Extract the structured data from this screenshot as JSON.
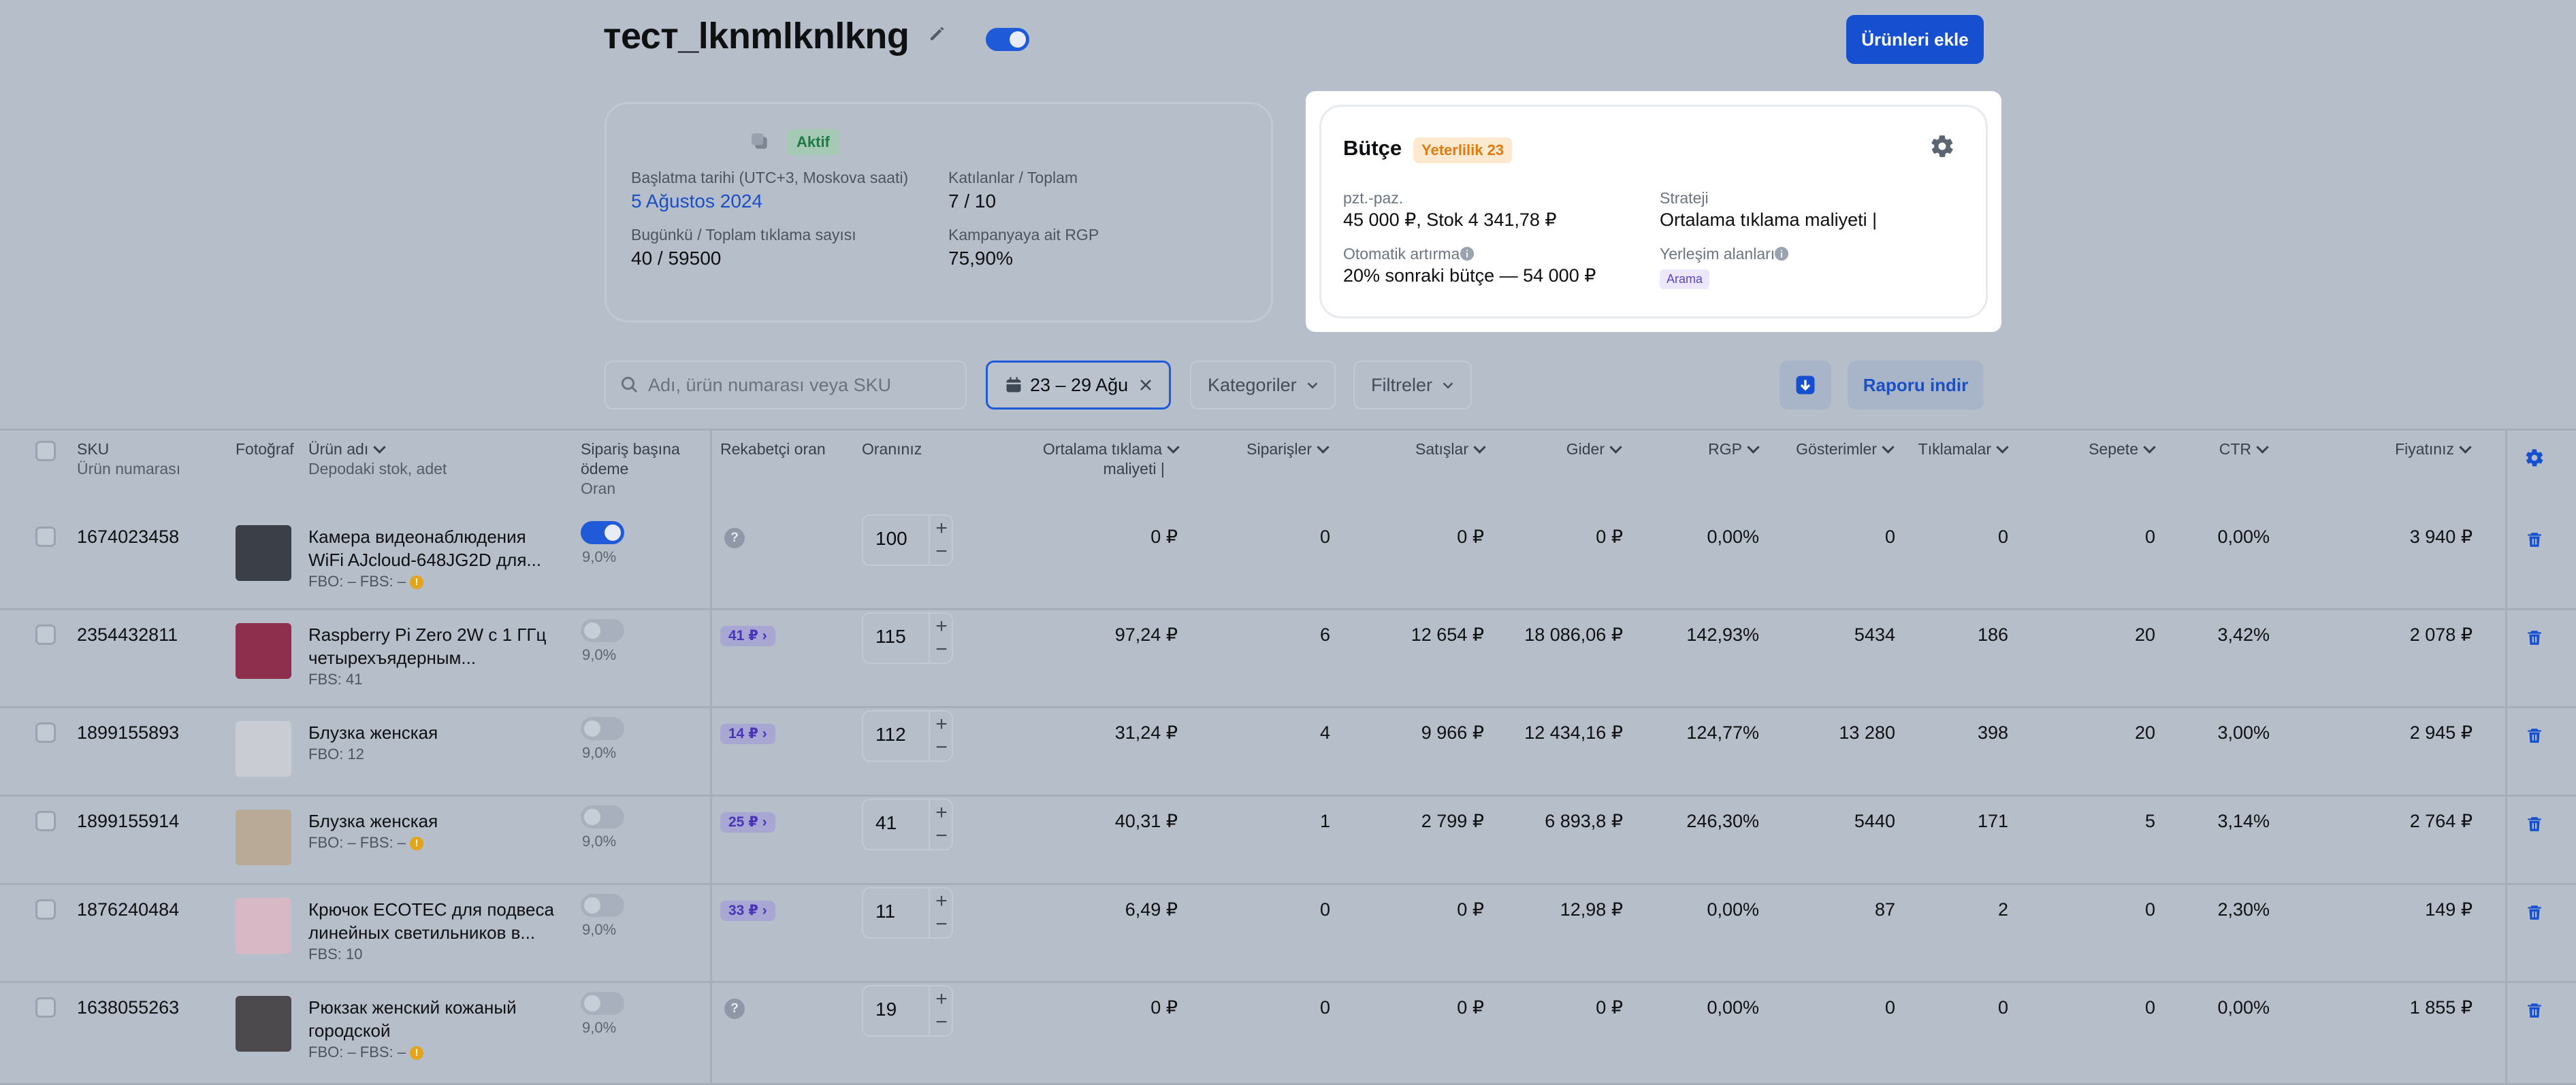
{
  "header": {
    "title": "тест_lknmlknlkng",
    "add_products_label": "Ürünleri ekle"
  },
  "campaign": {
    "status": "Aktif",
    "start_label": "Başlatma tarihi (UTC+3, Moskova saati)",
    "start_value": "5 Ağustos 2024",
    "participants_label": "Katılanlar / Toplam",
    "participants_value": "7 / 10",
    "clicks_label": "Bugünkü / Toplam tıklama sayısı",
    "clicks_value": "40 / 59500",
    "rgp_label": "Kampanyaya ait RGP",
    "rgp_value": "75,90%"
  },
  "budget": {
    "title": "Bütçe",
    "badge": "Yeterlilik 23",
    "period_label": "pzt.-paz.",
    "period_value": "45 000 ₽, Stok 4 341,78 ₽",
    "strategy_label": "Strateji",
    "strategy_value": "Ortalama tıklama maliyeti |",
    "auto_label": "Otomatik artırma",
    "auto_value": "20% sonraki bütçe — 54 000 ₽",
    "placement_label": "Yerleşim alanları",
    "placement_value": "Arama",
    "colors": {
      "badge_bg": "#fde9cf",
      "badge_fg": "#e07a12"
    }
  },
  "toolbar": {
    "search_placeholder": "Adı, ürün numarası veya SKU",
    "date_range": "23 – 29 Ağu",
    "categories": "Kategoriler",
    "filters": "Filtreler",
    "report": "Raporu indir"
  },
  "table": {
    "headers": {
      "sku": "SKU",
      "sku_sub": "Ürün numarası",
      "photo": "Fotoğraf",
      "name": "Ürün adı",
      "name_sub": "Depodaki stok, adet",
      "order_pay_1": "Sipariş başına",
      "order_pay_2": "ödeme",
      "order_pay_3": "Oran",
      "competitor": "Rekabetçi oran",
      "yourrate": "Oranınız",
      "cpc_1": "Ortalama tıklama",
      "cpc_2": "maliyeti |",
      "orders": "Siparişler",
      "sales": "Satışlar",
      "expense": "Gider",
      "rgp": "RGP",
      "impressions": "Gösterimler",
      "clicks": "Tıklamalar",
      "cart": "Sepete",
      "ctr": "CTR",
      "price": "Fiyatınız"
    },
    "rows": [
      {
        "sku": "1674023458",
        "name1": "Камера видеонаблюдения",
        "name2": "WiFi AJcloud-648JG2D для...",
        "stock": "FBO: –   FBS: –",
        "warn": "!",
        "pay_on": true,
        "pay_pct": "9,0%",
        "comp": "?",
        "rate": "100",
        "cpc": "0 ₽",
        "orders": "0",
        "sales": "0 ₽",
        "expense": "0 ₽",
        "rgp": "0,00%",
        "impr": "0",
        "clicks": "0",
        "cart": "0",
        "ctr": "0,00%",
        "price": "3 940 ₽",
        "thumb": "#3b3f47"
      },
      {
        "sku": "2354432811",
        "name1": "Raspberry Pi Zero 2W с 1 ГГц",
        "name2": "четырехъядерным...",
        "stock": "FBS: 41",
        "warn": "",
        "pay_on": false,
        "pay_pct": "9,0%",
        "comp": "41 ₽",
        "rate": "115",
        "cpc": "97,24 ₽",
        "orders": "6",
        "sales": "12 654 ₽",
        "expense": "18 086,06 ₽",
        "rgp": "142,93%",
        "impr": "5434",
        "clicks": "186",
        "cart": "20",
        "ctr": "3,42%",
        "price": "2 078 ₽",
        "thumb": "#8e2f4e"
      },
      {
        "sku": "1899155893",
        "name1": "Блузка женская",
        "name2": "",
        "stock": "FBO: 12",
        "warn": "",
        "pay_on": false,
        "pay_pct": "9,0%",
        "comp": "14 ₽",
        "rate": "112",
        "cpc": "31,24 ₽",
        "orders": "4",
        "sales": "9 966 ₽",
        "expense": "12 434,16 ₽",
        "rgp": "124,77%",
        "impr": "13 280",
        "clicks": "398",
        "cart": "20",
        "ctr": "3,00%",
        "price": "2 945 ₽",
        "thumb": "#c9cdd3"
      },
      {
        "sku": "1899155914",
        "name1": "Блузка женская",
        "name2": "",
        "stock": "FBO: –   FBS: –",
        "warn": "!",
        "pay_on": false,
        "pay_pct": "9,0%",
        "comp": "25 ₽",
        "rate": "41",
        "cpc": "40,31 ₽",
        "orders": "1",
        "sales": "2 799 ₽",
        "expense": "6 893,8 ₽",
        "rgp": "246,30%",
        "impr": "5440",
        "clicks": "171",
        "cart": "5",
        "ctr": "3,14%",
        "price": "2 764 ₽",
        "thumb": "#b9aa98"
      },
      {
        "sku": "1876240484",
        "name1": "Крючок ECOTEC для подвеса",
        "name2": "линейных светильников в...",
        "stock": "FBS: 10",
        "warn": "",
        "pay_on": false,
        "pay_pct": "9,0%",
        "comp": "33 ₽",
        "rate": "11",
        "cpc": "6,49 ₽",
        "orders": "0",
        "sales": "0 ₽",
        "expense": "12,98 ₽",
        "rgp": "0,00%",
        "impr": "87",
        "clicks": "2",
        "cart": "0",
        "ctr": "2,30%",
        "price": "149 ₽",
        "thumb": "#d7b8c4"
      },
      {
        "sku": "1638055263",
        "name1": "Рюкзак женский кожаный",
        "name2": "городской",
        "stock": "FBO: –   FBS: –",
        "warn": "!",
        "pay_on": false,
        "pay_pct": "9,0%",
        "comp": "?",
        "rate": "19",
        "cpc": "0 ₽",
        "orders": "0",
        "sales": "0 ₽",
        "expense": "0 ₽",
        "rgp": "0,00%",
        "impr": "0",
        "clicks": "0",
        "cart": "0",
        "ctr": "0,00%",
        "price": "1 855 ₽",
        "thumb": "#4c4a4d"
      }
    ]
  },
  "colors": {
    "primary": "#1650d0",
    "overlay_bg": "#b6bec9",
    "popup_bg": "#ffffff"
  }
}
